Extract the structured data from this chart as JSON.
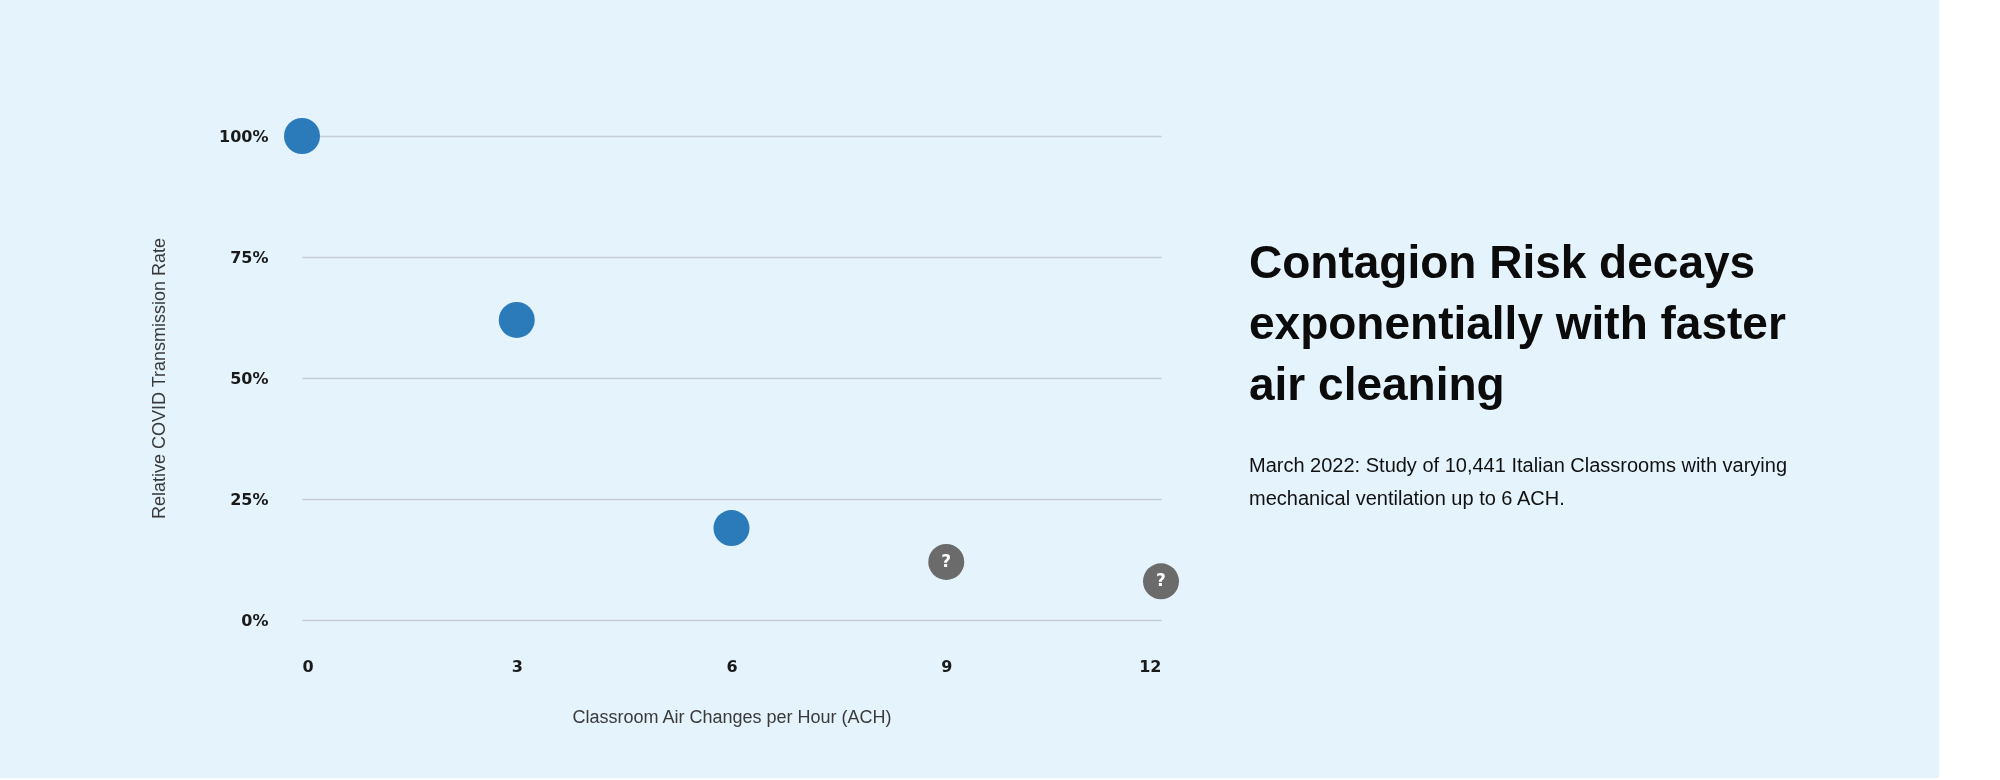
{
  "chart_data": {
    "type": "scatter",
    "title": "Contagion Risk decays exponentially with faster air cleaning",
    "subtitle": "March 2022: Study of 10,441 Italian Classrooms with varying mechanical ventilation up to 6 ACH.",
    "xlabel": "Classroom Air Changes per Hour (ACH)",
    "ylabel": "Relative COVID Transmission Rate",
    "series": [
      {
        "color": "#2b7bba",
        "x": [
          0,
          3,
          6
        ],
        "values": [
          100,
          62,
          19
        ]
      },
      {
        "color": "#6b6b6b",
        "x": [
          9,
          12
        ],
        "values": [
          12,
          8
        ]
      }
    ],
    "annotations": [
      {
        "text": "?",
        "x": 9,
        "y": 12
      },
      {
        "text": "?",
        "x": 12,
        "y": 8
      }
    ],
    "xlim": [
      0,
      12
    ],
    "xticks": [
      0,
      3,
      6,
      9,
      12
    ],
    "ylim": [
      0,
      100
    ],
    "yticks": [
      {
        "value": 0,
        "label": "0%"
      },
      {
        "value": 25,
        "label": "25%"
      },
      {
        "value": 50,
        "label": "50%"
      },
      {
        "value": 75,
        "label": "75%"
      },
      {
        "value": 100,
        "label": "100%"
      }
    ],
    "grid": "y",
    "marker": "circle"
  }
}
